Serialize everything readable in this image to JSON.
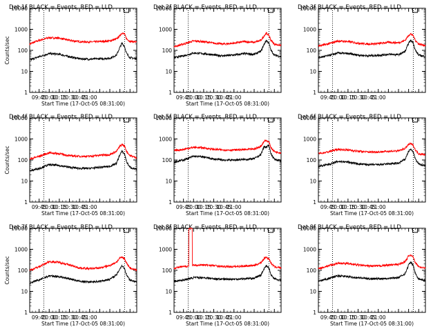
{
  "figure": {
    "background": "#ffffff",
    "foreground": "#000000"
  },
  "chart_data": [
    {
      "panel": 1,
      "type": "line",
      "title": "Det 1f BLACK = Events, RED = LLD",
      "xlabel": "Start Time (17-Oct-05 08:31:00)",
      "ylabel": "Counts/sec",
      "yscale": "log",
      "ylim": [
        1,
        10000
      ],
      "xlim": [
        "08:31",
        "11:10"
      ],
      "x_tick_labels": [
        "09:45",
        "10:00",
        "10:15",
        "10:30",
        "10:45",
        "11:00"
      ],
      "y_tick_labels": [
        "1",
        "10",
        "100",
        "1000",
        "10000"
      ],
      "vlines": [
        "08:52",
        "10:52"
      ],
      "marker": "10:53",
      "series": [
        {
          "color": "#ff0000",
          "x": [
            "08:31",
            "08:45",
            "09:00",
            "09:15",
            "09:30",
            "09:45",
            "10:00",
            "10:15",
            "10:30",
            "10:40",
            "10:45",
            "10:48",
            "10:52",
            "10:55",
            "11:00",
            "11:10"
          ],
          "y": [
            200,
            300,
            400,
            380,
            300,
            260,
            250,
            260,
            280,
            350,
            500,
            680,
            580,
            350,
            270,
            250
          ]
        },
        {
          "color": "#000000",
          "x": [
            "08:31",
            "08:45",
            "09:00",
            "09:15",
            "09:30",
            "09:45",
            "10:00",
            "10:15",
            "10:30",
            "10:40",
            "10:45",
            "10:48",
            "10:52",
            "10:55",
            "11:00",
            "11:10"
          ],
          "y": [
            35,
            50,
            70,
            65,
            50,
            40,
            38,
            40,
            42,
            60,
            140,
            220,
            150,
            70,
            45,
            40
          ]
        }
      ]
    },
    {
      "panel": 2,
      "type": "line",
      "title": "Det 2f BLACK = Events, RED = LLD",
      "xlabel": "Start Time (17-Oct-05 08:31:00)",
      "ylabel": "",
      "yscale": "log",
      "ylim": [
        1,
        10000
      ],
      "xlim": [
        "08:31",
        "11:10"
      ],
      "x_tick_labels": [
        "09:45",
        "10:00",
        "10:15",
        "10:30",
        "10:45",
        "11:00"
      ],
      "y_tick_labels": [
        "1",
        "10",
        "100",
        "1000",
        "10000"
      ],
      "vlines": [
        "08:52",
        "10:52"
      ],
      "marker": "10:53",
      "series": [
        {
          "color": "#ff0000",
          "x": [
            "08:31",
            "08:45",
            "09:00",
            "09:15",
            "09:30",
            "09:45",
            "10:00",
            "10:15",
            "10:30",
            "10:40",
            "10:45",
            "10:48",
            "10:52",
            "10:55",
            "11:00",
            "11:10"
          ],
          "y": [
            150,
            200,
            280,
            260,
            220,
            200,
            220,
            260,
            240,
            300,
            500,
            650,
            520,
            300,
            200,
            170
          ]
        },
        {
          "color": "#000000",
          "x": [
            "08:31",
            "08:45",
            "09:00",
            "09:15",
            "09:30",
            "09:45",
            "10:00",
            "10:15",
            "10:30",
            "10:40",
            "10:45",
            "10:48",
            "10:52",
            "10:55",
            "11:00",
            "11:10"
          ],
          "y": [
            45,
            55,
            75,
            70,
            60,
            55,
            60,
            70,
            65,
            90,
            200,
            300,
            220,
            100,
            60,
            50
          ]
        }
      ]
    },
    {
      "panel": 3,
      "type": "line",
      "title": "Det 3f BLACK = Events, RED = LLD",
      "xlabel": "",
      "ylabel": "",
      "yscale": "log",
      "ylim": [
        1,
        10000
      ],
      "xlim": [
        "08:31",
        "11:10"
      ],
      "x_tick_labels": [
        "09:45",
        "10:00",
        "10:15",
        "10:30",
        "10:45",
        "11:00"
      ],
      "y_tick_labels": [
        "1",
        "10",
        "100",
        "1000",
        "10000"
      ],
      "vlines": [
        "08:52",
        "10:52"
      ],
      "marker": "10:53",
      "series": [
        {
          "color": "#ff0000",
          "x": [
            "08:31",
            "08:45",
            "09:00",
            "09:15",
            "09:30",
            "09:45",
            "10:00",
            "10:15",
            "10:30",
            "10:40",
            "10:45",
            "10:48",
            "10:52",
            "10:55",
            "11:00",
            "11:10"
          ],
          "y": [
            160,
            200,
            280,
            260,
            220,
            200,
            210,
            240,
            230,
            300,
            520,
            600,
            500,
            300,
            200,
            170
          ]
        },
        {
          "color": "#000000",
          "x": [
            "08:31",
            "08:45",
            "09:00",
            "09:15",
            "09:30",
            "09:45",
            "10:00",
            "10:15",
            "10:30",
            "10:40",
            "10:45",
            "10:48",
            "10:52",
            "10:55",
            "11:00",
            "11:10"
          ],
          "y": [
            45,
            55,
            75,
            70,
            60,
            55,
            58,
            65,
            62,
            90,
            220,
            300,
            230,
            100,
            60,
            50
          ]
        }
      ]
    },
    {
      "panel": 4,
      "type": "line",
      "title": "Det 4f BLACK = Events, RED = LLD",
      "xlabel": "Start Time (17-Oct-05 08:31:00)",
      "ylabel": "Counts/sec",
      "yscale": "log",
      "ylim": [
        1,
        10000
      ],
      "xlim": [
        "08:31",
        "11:10"
      ],
      "x_tick_labels": [
        "09:45",
        "10:00",
        "10:15",
        "10:30",
        "10:45",
        "11:00"
      ],
      "y_tick_labels": [
        "1",
        "10",
        "100",
        "1000",
        "10000"
      ],
      "vlines": [
        "08:52",
        "10:52"
      ],
      "marker": "10:53",
      "series": [
        {
          "color": "#ff0000",
          "x": [
            "08:31",
            "08:45",
            "09:00",
            "09:15",
            "09:30",
            "09:45",
            "10:00",
            "10:15",
            "10:30",
            "10:40",
            "10:45",
            "10:48",
            "10:52",
            "10:55",
            "11:00",
            "11:10"
          ],
          "y": [
            110,
            150,
            220,
            200,
            160,
            150,
            150,
            170,
            180,
            260,
            450,
            550,
            450,
            260,
            160,
            130
          ]
        },
        {
          "color": "#000000",
          "x": [
            "08:31",
            "08:45",
            "09:00",
            "09:15",
            "09:30",
            "09:45",
            "10:00",
            "10:15",
            "10:30",
            "10:40",
            "10:45",
            "10:48",
            "10:52",
            "10:55",
            "11:00",
            "11:10"
          ],
          "y": [
            30,
            40,
            60,
            55,
            45,
            40,
            40,
            45,
            50,
            70,
            180,
            260,
            190,
            80,
            45,
            35
          ]
        }
      ]
    },
    {
      "panel": 5,
      "type": "line",
      "title": "Det 5f BLACK = Events, RED = LLD",
      "xlabel": "Start Time (17-Oct-05 08:31:00)",
      "ylabel": "",
      "yscale": "log",
      "ylim": [
        1,
        10000
      ],
      "xlim": [
        "08:31",
        "11:10"
      ],
      "x_tick_labels": [
        "09:45",
        "10:00",
        "10:15",
        "10:30",
        "10:45",
        "11:00"
      ],
      "y_tick_labels": [
        "1",
        "10",
        "100",
        "1000",
        "10000"
      ],
      "vlines": [
        "08:52",
        "10:52"
      ],
      "marker": "10:53",
      "series": [
        {
          "color": "#ff0000",
          "x": [
            "08:31",
            "08:45",
            "09:00",
            "09:15",
            "09:30",
            "09:45",
            "10:00",
            "10:15",
            "10:30",
            "10:40",
            "10:45",
            "10:48",
            "10:52",
            "10:55",
            "11:00",
            "11:10"
          ],
          "y": [
            280,
            320,
            400,
            380,
            320,
            300,
            300,
            310,
            330,
            450,
            800,
            850,
            700,
            400,
            250,
            220
          ]
        },
        {
          "color": "#000000",
          "x": [
            "08:31",
            "08:45",
            "09:00",
            "09:15",
            "09:30",
            "09:45",
            "10:00",
            "10:15",
            "10:30",
            "10:40",
            "10:45",
            "10:48",
            "10:52",
            "10:55",
            "11:00",
            "11:10"
          ],
          "y": [
            80,
            100,
            150,
            140,
            110,
            100,
            100,
            105,
            115,
            180,
            450,
            400,
            500,
            200,
            110,
            90
          ]
        }
      ]
    },
    {
      "panel": 6,
      "type": "line",
      "title": "Det 6f BLACK = Events, RED = LLD",
      "xlabel": "Start Time (17-Oct-05 08:31:00)",
      "ylabel": "",
      "yscale": "log",
      "ylim": [
        1,
        10000
      ],
      "xlim": [
        "08:31",
        "11:10"
      ],
      "x_tick_labels": [
        "09:45",
        "10:00",
        "10:15",
        "10:30",
        "10:45",
        "11:00"
      ],
      "y_tick_labels": [
        "1",
        "10",
        "100",
        "1000",
        "10000"
      ],
      "vlines": [
        "08:52",
        "10:52"
      ],
      "marker": "10:53",
      "series": [
        {
          "color": "#ff0000",
          "x": [
            "08:31",
            "08:45",
            "09:00",
            "09:15",
            "09:30",
            "09:45",
            "10:00",
            "10:15",
            "10:30",
            "10:40",
            "10:45",
            "10:48",
            "10:52",
            "10:55",
            "11:00",
            "11:10"
          ],
          "y": [
            200,
            240,
            320,
            300,
            260,
            240,
            240,
            260,
            270,
            360,
            550,
            600,
            500,
            300,
            200,
            180
          ]
        },
        {
          "color": "#000000",
          "x": [
            "08:31",
            "08:45",
            "09:00",
            "09:15",
            "09:30",
            "09:45",
            "10:00",
            "10:15",
            "10:30",
            "10:40",
            "10:45",
            "10:48",
            "10:52",
            "10:55",
            "11:00",
            "11:10"
          ],
          "y": [
            50,
            60,
            85,
            80,
            65,
            60,
            60,
            65,
            70,
            110,
            260,
            320,
            240,
            110,
            65,
            55
          ]
        }
      ]
    },
    {
      "panel": 7,
      "type": "line",
      "title": "Det 7f BLACK = Events, RED = LLD",
      "xlabel": "Start Time (17-Oct-05 08:31:00)",
      "ylabel": "Counts/sec",
      "yscale": "log",
      "ylim": [
        1,
        10000
      ],
      "xlim": [
        "08:31",
        "11:10"
      ],
      "x_tick_labels": [
        "09:45",
        "10:00",
        "10:15",
        "10:30",
        "10:45",
        "11:00"
      ],
      "y_tick_labels": [
        "1",
        "10",
        "100",
        "1000",
        "10000"
      ],
      "vlines": [
        "08:52",
        "10:52"
      ],
      "marker": "10:53",
      "series": [
        {
          "color": "#ff0000",
          "x": [
            "08:31",
            "08:45",
            "09:00",
            "09:15",
            "09:30",
            "09:45",
            "10:00",
            "10:15",
            "10:30",
            "10:40",
            "10:45",
            "10:48",
            "10:52",
            "10:55",
            "11:00",
            "11:10"
          ],
          "y": [
            100,
            150,
            260,
            240,
            180,
            130,
            120,
            130,
            170,
            250,
            380,
            420,
            350,
            220,
            130,
            100
          ]
        },
        {
          "color": "#000000",
          "x": [
            "08:31",
            "08:45",
            "09:00",
            "09:15",
            "09:30",
            "09:45",
            "10:00",
            "10:15",
            "10:30",
            "10:40",
            "10:45",
            "10:48",
            "10:52",
            "10:55",
            "11:00",
            "11:10"
          ],
          "y": [
            25,
            35,
            55,
            50,
            40,
            30,
            28,
            30,
            38,
            60,
            120,
            170,
            120,
            60,
            35,
            28
          ]
        }
      ]
    },
    {
      "panel": 8,
      "type": "line",
      "title": "Det 8f BLACK = Events, RED = LLD",
      "xlabel": "Start Time (17-Oct-05 08:31:00)",
      "ylabel": "",
      "yscale": "log",
      "ylim": [
        1,
        10000
      ],
      "xlim": [
        "08:31",
        "11:10"
      ],
      "x_tick_labels": [
        "09:45",
        "10:00",
        "10:15",
        "10:30",
        "10:45",
        "11:00"
      ],
      "y_tick_labels": [
        "1",
        "10",
        "100",
        "1000",
        "10000"
      ],
      "vlines": [
        "08:52",
        "10:52"
      ],
      "marker": "10:53",
      "series": [
        {
          "color": "#ff0000",
          "x": [
            "08:31",
            "08:45",
            "08:53",
            "08:53",
            "08:58",
            "08:58",
            "09:15",
            "09:30",
            "09:45",
            "10:00",
            "10:15",
            "10:30",
            "10:40",
            "10:45",
            "10:48",
            "10:52",
            "10:55",
            "11:00",
            "11:10"
          ],
          "y": [
            130,
            150,
            160,
            10000,
            10000,
            170,
            180,
            170,
            150,
            150,
            160,
            170,
            230,
            380,
            420,
            350,
            220,
            150,
            130
          ]
        },
        {
          "color": "#000000",
          "x": [
            "08:31",
            "08:45",
            "09:00",
            "09:15",
            "09:30",
            "09:45",
            "10:00",
            "10:15",
            "10:30",
            "10:40",
            "10:45",
            "10:48",
            "10:52",
            "10:55",
            "11:00",
            "11:10"
          ],
          "y": [
            30,
            35,
            45,
            45,
            40,
            38,
            38,
            40,
            42,
            60,
            120,
            170,
            130,
            60,
            40,
            32
          ]
        }
      ]
    },
    {
      "panel": 9,
      "type": "line",
      "title": "Det 9f BLACK = Events, RED = LLD",
      "xlabel": "Start Time (17-Oct-05 08:31:00)",
      "ylabel": "",
      "yscale": "log",
      "ylim": [
        1,
        10000
      ],
      "xlim": [
        "08:31",
        "11:10"
      ],
      "x_tick_labels": [
        "09:45",
        "10:00",
        "10:15",
        "10:30",
        "10:45",
        "11:00"
      ],
      "y_tick_labels": [
        "1",
        "10",
        "100",
        "1000",
        "10000"
      ],
      "vlines": [
        "08:52",
        "10:52"
      ],
      "marker": "10:53",
      "series": [
        {
          "color": "#ff0000",
          "x": [
            "08:31",
            "08:45",
            "09:00",
            "09:15",
            "09:30",
            "09:45",
            "10:00",
            "10:15",
            "10:30",
            "10:40",
            "10:45",
            "10:48",
            "10:52",
            "10:55",
            "11:00",
            "11:10"
          ],
          "y": [
            120,
            160,
            220,
            210,
            180,
            160,
            160,
            180,
            190,
            260,
            480,
            550,
            420,
            230,
            150,
            130
          ]
        },
        {
          "color": "#000000",
          "x": [
            "08:31",
            "08:45",
            "09:00",
            "09:15",
            "09:30",
            "09:45",
            "10:00",
            "10:15",
            "10:30",
            "10:40",
            "10:45",
            "10:48",
            "10:52",
            "10:55",
            "11:00",
            "11:10"
          ],
          "y": [
            30,
            40,
            55,
            50,
            45,
            40,
            40,
            42,
            45,
            70,
            180,
            240,
            170,
            70,
            40,
            32
          ]
        }
      ]
    }
  ]
}
